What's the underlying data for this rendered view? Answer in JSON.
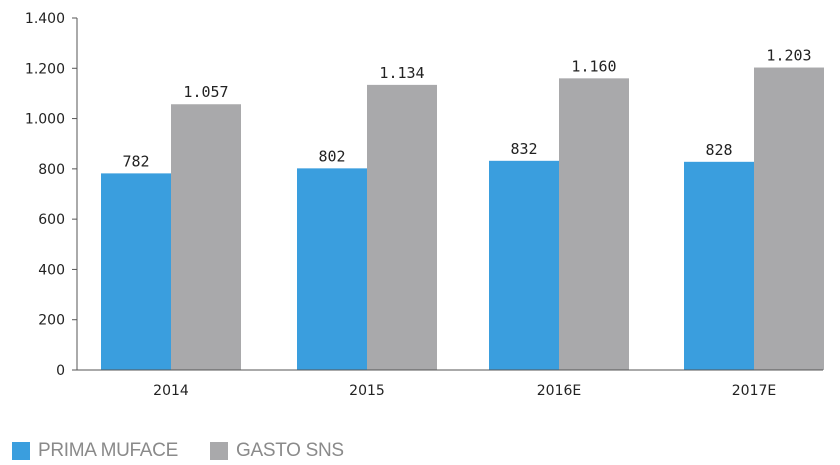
{
  "chart_data": {
    "type": "bar",
    "categories": [
      "2014",
      "2015",
      "2016E",
      "2017E"
    ],
    "series": [
      {
        "name": "PRIMA MUFACE",
        "color": "#3a9ede",
        "values": [
          782,
          802,
          832,
          828
        ],
        "labels": [
          "782",
          "802",
          "832",
          "828"
        ]
      },
      {
        "name": "GASTO SNS",
        "color": "#a9a9ab",
        "values": [
          1057,
          1134,
          1160,
          1203
        ],
        "labels": [
          "1.057",
          "1.134",
          "1.160",
          "1.203"
        ]
      }
    ],
    "ylim": [
      0,
      1400
    ],
    "yticks": [
      0,
      200,
      400,
      600,
      800,
      1000,
      1200,
      1400
    ],
    "ytick_labels": [
      "0",
      "200",
      "400",
      "600",
      "800",
      "1.000",
      "1.200",
      "1.400"
    ],
    "grid": false,
    "legend_position": "bottom-left",
    "title": "",
    "xlabel": "",
    "ylabel": ""
  }
}
